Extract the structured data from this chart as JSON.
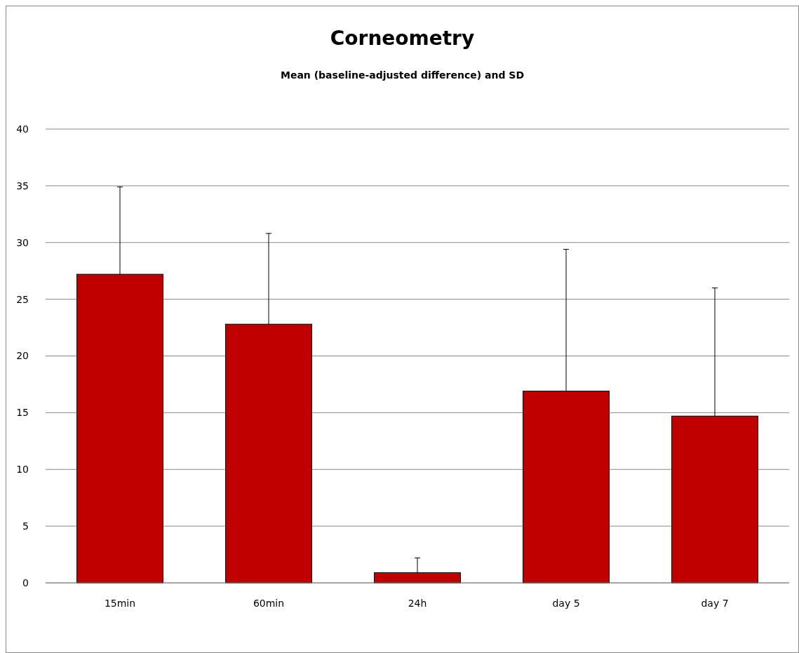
{
  "chart_data": {
    "type": "bar",
    "title": "Corneometry",
    "subtitle": "Mean (baseline-adjusted difference) and SD",
    "categories": [
      "15min",
      "60min",
      "24h",
      "day 5",
      "day 7"
    ],
    "series": [
      {
        "color": "#c00000",
        "values": [
          27.2,
          22.8,
          0.9,
          16.9,
          14.7
        ],
        "errors": [
          [
            27.2,
            34.9
          ],
          [
            22.8,
            30.8
          ],
          [
            0.9,
            2.2
          ],
          [
            16.9,
            29.4
          ],
          [
            14.7,
            26.0
          ]
        ]
      }
    ],
    "ylim": [
      0,
      40
    ],
    "yticks": [
      0,
      5,
      10,
      15,
      20,
      25,
      30,
      35,
      40
    ],
    "grid": "y"
  }
}
